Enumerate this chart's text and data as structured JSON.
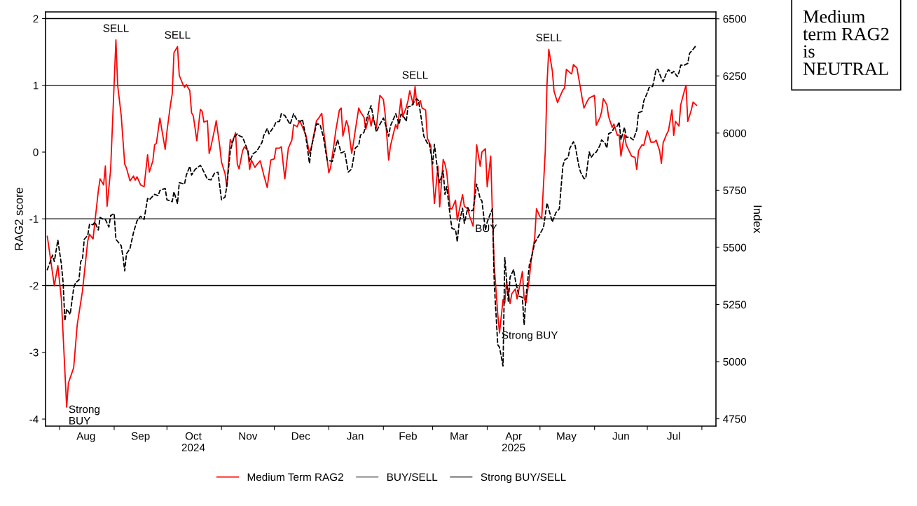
{
  "chart_data": {
    "type": "line",
    "ylabel": "RAG2 score",
    "y2label": "Index",
    "legend": "bottom",
    "xlim": [
      "2024-07-24",
      "2025-08-09"
    ],
    "ylim": [
      -4.105,
      2.1
    ],
    "yticks": [
      -4,
      -3,
      -2,
      -1,
      0,
      1,
      2
    ],
    "y2lim": [
      4718,
      6530
    ],
    "y2ticks": [
      4750,
      5000,
      5250,
      5500,
      5750,
      6000,
      6250,
      6500
    ],
    "xticks": [
      {
        "value": "2024-08-01",
        "label": null
      },
      {
        "value": "2024-09-01",
        "label": null
      },
      {
        "value": "2024-10-01",
        "label": null
      },
      {
        "value": "2024-11-01",
        "label": null
      },
      {
        "value": "2024-12-01",
        "label": null
      },
      {
        "value": "2025-01-01",
        "label": null
      },
      {
        "value": "2025-02-01",
        "label": null
      },
      {
        "value": "2025-03-01",
        "label": null
      },
      {
        "value": "2025-04-01",
        "label": null
      },
      {
        "value": "2025-05-01",
        "label": null
      },
      {
        "value": "2025-06-01",
        "label": null
      },
      {
        "value": "2025-07-01",
        "label": null
      },
      {
        "value": "2025-08-01",
        "label": null
      },
      {
        "value": "2024-08-16",
        "label": "Aug"
      },
      {
        "value": "2024-09-16",
        "label": "Sep"
      },
      {
        "value": "2024-10-16",
        "label": "Oct\n2024"
      },
      {
        "value": "2024-11-16",
        "label": "Nov"
      },
      {
        "value": "2024-12-16",
        "label": "Dec"
      },
      {
        "value": "2025-01-16",
        "label": "Jan"
      },
      {
        "value": "2025-02-15",
        "label": "Feb"
      },
      {
        "value": "2025-03-16",
        "label": "Mar"
      },
      {
        "value": "2025-04-16",
        "label": "Apr\n2025"
      },
      {
        "value": "2025-05-16",
        "label": "May"
      },
      {
        "value": "2025-06-16",
        "label": "Jun"
      },
      {
        "value": "2025-07-16",
        "label": "Jul"
      }
    ],
    "series": [
      {
        "name": "Medium Term RAG2",
        "color": "#ff0000",
        "line_style": "solid",
        "x": [
          "2024-07-25",
          "2024-07-29",
          "2024-07-31",
          "2024-08-02",
          "2024-08-05",
          "2024-08-06",
          "2024-08-09",
          "2024-08-11",
          "2024-08-14",
          "2024-08-17",
          "2024-08-18",
          "2024-08-20",
          "2024-08-23",
          "2024-08-24",
          "2024-08-26",
          "2024-08-27",
          "2024-08-28",
          "2024-08-30",
          "2024-09-02",
          "2024-09-03",
          "2024-09-05",
          "2024-09-07",
          "2024-09-08",
          "2024-09-10",
          "2024-09-12",
          "2024-09-13",
          "2024-09-14",
          "2024-09-16",
          "2024-09-18",
          "2024-09-20",
          "2024-09-21",
          "2024-09-23",
          "2024-09-24",
          "2024-09-25",
          "2024-09-27",
          "2024-09-28",
          "2024-09-30",
          "2024-10-01",
          "2024-10-03",
          "2024-10-04",
          "2024-10-05",
          "2024-10-07",
          "2024-10-08",
          "2024-10-10",
          "2024-10-11",
          "2024-10-12",
          "2024-10-14",
          "2024-10-15",
          "2024-10-16",
          "2024-10-18",
          "2024-10-20",
          "2024-10-21",
          "2024-10-22",
          "2024-10-24",
          "2024-10-25",
          "2024-10-26",
          "2024-10-28",
          "2024-10-29",
          "2024-10-31",
          "2024-11-01",
          "2024-11-03",
          "2024-11-04",
          "2024-11-06",
          "2024-11-07",
          "2024-11-09",
          "2024-11-10",
          "2024-11-11",
          "2024-11-13",
          "2024-11-14",
          "2024-11-16",
          "2024-11-17",
          "2024-11-18",
          "2024-11-20",
          "2024-11-21",
          "2024-11-23",
          "2024-11-25",
          "2024-11-27",
          "2024-11-29",
          "2024-12-01",
          "2024-12-02",
          "2024-12-04",
          "2024-12-05",
          "2024-12-07",
          "2024-12-09",
          "2024-12-11",
          "2024-12-12",
          "2024-12-14",
          "2024-12-15",
          "2024-12-16",
          "2024-12-19",
          "2024-12-21",
          "2024-12-22",
          "2024-12-25",
          "2024-12-26",
          "2024-12-28",
          "2024-12-29",
          "2025-01-01",
          "2025-01-02",
          "2025-01-04",
          "2025-01-05",
          "2025-01-07",
          "2025-01-08",
          "2025-01-09",
          "2025-01-11",
          "2025-01-12",
          "2025-01-14",
          "2025-01-15",
          "2025-01-16",
          "2025-01-18",
          "2025-01-19",
          "2025-01-21",
          "2025-01-22",
          "2025-01-24",
          "2025-01-25",
          "2025-01-26",
          "2025-01-28",
          "2025-01-30",
          "2025-02-01",
          "2025-02-02",
          "2025-02-04",
          "2025-02-05",
          "2025-02-07",
          "2025-02-08",
          "2025-02-09",
          "2025-02-11",
          "2025-02-12",
          "2025-02-14",
          "2025-02-15",
          "2025-02-16",
          "2025-02-18",
          "2025-02-19",
          "2025-02-20",
          "2025-02-22",
          "2025-02-23",
          "2025-02-25",
          "2025-02-26",
          "2025-02-28",
          "2025-03-01",
          "2025-03-02",
          "2025-03-04",
          "2025-03-05",
          "2025-03-07",
          "2025-03-08",
          "2025-03-09",
          "2025-03-11",
          "2025-03-12",
          "2025-03-14",
          "2025-03-15",
          "2025-03-17",
          "2025-03-18",
          "2025-03-19",
          "2025-03-21",
          "2025-03-22",
          "2025-03-24",
          "2025-03-25",
          "2025-03-26",
          "2025-03-28",
          "2025-03-29",
          "2025-03-31",
          "2025-04-01",
          "2025-04-03",
          "2025-04-04",
          "2025-04-05",
          "2025-04-07",
          "2025-04-08",
          "2025-04-10",
          "2025-04-11",
          "2025-04-12",
          "2025-04-14",
          "2025-04-15",
          "2025-04-17",
          "2025-04-18",
          "2025-04-21",
          "2025-04-22",
          "2025-04-23",
          "2025-04-25",
          "2025-04-26",
          "2025-04-28",
          "2025-04-29",
          "2025-05-01",
          "2025-05-02",
          "2025-05-04",
          "2025-05-05",
          "2025-05-06",
          "2025-05-08",
          "2025-05-09",
          "2025-05-11",
          "2025-05-12",
          "2025-05-14",
          "2025-05-15",
          "2025-05-16",
          "2025-05-18",
          "2025-05-19",
          "2025-05-20",
          "2025-05-22",
          "2025-05-24",
          "2025-05-25",
          "2025-05-26",
          "2025-05-28",
          "2025-05-29",
          "2025-06-01",
          "2025-06-02",
          "2025-06-04",
          "2025-06-05",
          "2025-06-06",
          "2025-06-08",
          "2025-06-09",
          "2025-06-11",
          "2025-06-12",
          "2025-06-14",
          "2025-06-15",
          "2025-06-16",
          "2025-06-18",
          "2025-06-19",
          "2025-06-21",
          "2025-06-22",
          "2025-06-24",
          "2025-06-25",
          "2025-06-26",
          "2025-06-28",
          "2025-06-29",
          "2025-07-01",
          "2025-07-02",
          "2025-07-03",
          "2025-07-05",
          "2025-07-06",
          "2025-07-08",
          "2025-07-09",
          "2025-07-10",
          "2025-07-12",
          "2025-07-13",
          "2025-07-15",
          "2025-07-16",
          "2025-07-17",
          "2025-07-19",
          "2025-07-20",
          "2025-07-22",
          "2025-07-23",
          "2025-07-24",
          "2025-07-26",
          "2025-07-27",
          "2025-07-29"
        ],
        "values": [
          -1.26,
          -2.0,
          -1.7,
          -2.2,
          -3.82,
          -3.46,
          -3.23,
          -2.59,
          -2.08,
          -1.33,
          -1.23,
          -1.3,
          -0.58,
          -0.4,
          -0.49,
          -0.21,
          -0.81,
          -0.26,
          1.68,
          1.0,
          0.55,
          -0.18,
          -0.24,
          -0.43,
          -0.36,
          -0.42,
          -0.37,
          -0.49,
          -0.52,
          -0.04,
          -0.3,
          -0.13,
          0.11,
          0.13,
          0.51,
          0.35,
          0.04,
          0.31,
          0.71,
          0.87,
          1.49,
          1.58,
          1.15,
          1.02,
          0.97,
          1.01,
          0.92,
          0.59,
          0.54,
          0.17,
          0.64,
          0.61,
          0.45,
          0.47,
          -0.02,
          0.08,
          0.33,
          0.47,
          0.09,
          -0.15,
          -0.32,
          -0.52,
          0.19,
          0.13,
          0.29,
          -0.18,
          -0.25,
          0.02,
          0.08,
          0.02,
          -0.26,
          -0.12,
          -0.23,
          -0.19,
          -0.13,
          -0.34,
          -0.53,
          -0.12,
          -0.1,
          0.06,
          0.06,
          0.08,
          -0.4,
          0.06,
          0.18,
          0.41,
          0.38,
          0.45,
          0.44,
          0.25,
          -0.02,
          0.06,
          0.47,
          0.5,
          0.58,
          0.33,
          -0.31,
          -0.23,
          0.13,
          0.33,
          0.63,
          0.66,
          0.24,
          0.47,
          0.39,
          -0.02,
          0.14,
          0.32,
          0.66,
          0.6,
          0.52,
          0.34,
          0.55,
          0.39,
          0.52,
          0.36,
          0.85,
          0.79,
          0.57,
          -0.12,
          0.09,
          0.31,
          0.41,
          0.35,
          0.8,
          0.53,
          0.67,
          0.77,
          0.92,
          0.71,
          0.98,
          0.7,
          0.77,
          0.66,
          0.63,
          0.21,
          0.09,
          -0.34,
          -0.77,
          -0.21,
          -0.82,
          -0.11,
          -0.18,
          -0.3,
          -0.85,
          -0.85,
          -0.72,
          -1.02,
          -0.76,
          -0.64,
          -0.81,
          -0.85,
          -0.96,
          -1.11,
          -0.5,
          0.11,
          -0.21,
          0.0,
          0.05,
          -0.52,
          -0.06,
          -0.97,
          -1.7,
          -2.43,
          -2.71,
          -2.21,
          -2.26,
          -1.94,
          -2.27,
          -2.12,
          -2.05,
          -2.2,
          -1.79,
          -2.19,
          -2.26,
          -1.88,
          -1.62,
          -1.29,
          -0.85,
          -0.97,
          -0.99,
          0.01,
          1.02,
          1.54,
          1.22,
          0.91,
          0.74,
          0.81,
          0.93,
          0.96,
          1.24,
          1.19,
          1.17,
          1.31,
          1.26,
          0.96,
          0.8,
          0.66,
          0.77,
          0.81,
          0.85,
          0.4,
          0.51,
          0.6,
          0.8,
          0.71,
          0.53,
          0.37,
          0.42,
          0.25,
          0.26,
          -0.06,
          0.26,
          0.11,
          0.0,
          -0.06,
          -0.08,
          -0.26,
          0.02,
          0.11,
          0.1,
          0.32,
          0.25,
          0.15,
          0.15,
          0.18,
          0.02,
          -0.17,
          0.14,
          0.27,
          0.32,
          0.63,
          0.25,
          0.46,
          0.39,
          0.71,
          0.91,
          1.0,
          0.46,
          0.63,
          0.75,
          0.7
        ]
      },
      {
        "color": "#000000",
        "line_style": "dashed",
        "axis": "y2",
        "x": [
          "2024-07-25",
          "2024-07-28",
          "2024-07-29",
          "2024-07-31",
          "2024-08-02",
          "2024-08-03",
          "2024-08-04",
          "2024-08-05",
          "2024-08-07",
          "2024-08-09",
          "2024-08-10",
          "2024-08-12",
          "2024-08-13",
          "2024-08-14",
          "2024-08-15",
          "2024-08-17",
          "2024-08-18",
          "2024-08-20",
          "2024-08-21",
          "2024-08-23",
          "2024-08-24",
          "2024-08-26",
          "2024-08-27",
          "2024-08-29",
          "2024-08-30",
          "2024-09-01",
          "2024-09-02",
          "2024-09-05",
          "2024-09-06",
          "2024-09-07",
          "2024-09-08",
          "2024-09-10",
          "2024-09-12",
          "2024-09-14",
          "2024-09-16",
          "2024-09-18",
          "2024-09-20",
          "2024-09-21",
          "2024-09-24",
          "2024-09-26",
          "2024-09-27",
          "2024-09-30",
          "2024-10-01",
          "2024-10-04",
          "2024-10-05",
          "2024-10-07",
          "2024-10-08",
          "2024-10-11",
          "2024-10-12",
          "2024-10-14",
          "2024-10-15",
          "2024-10-17",
          "2024-10-20",
          "2024-10-21",
          "2024-10-24",
          "2024-10-26",
          "2024-10-28",
          "2024-10-30",
          "2024-11-01",
          "2024-11-03",
          "2024-11-04",
          "2024-11-06",
          "2024-11-08",
          "2024-11-10",
          "2024-11-11",
          "2024-11-13",
          "2024-11-16",
          "2024-11-17",
          "2024-11-19",
          "2024-11-21",
          "2024-11-24",
          "2024-11-25",
          "2024-11-27",
          "2024-11-28",
          "2024-12-01",
          "2024-12-02",
          "2024-12-04",
          "2024-12-05",
          "2024-12-07",
          "2024-12-10",
          "2024-12-12",
          "2024-12-14",
          "2024-12-16",
          "2024-12-17",
          "2024-12-19",
          "2024-12-21",
          "2024-12-22",
          "2024-12-25",
          "2024-12-27",
          "2024-12-29",
          "2024-12-31",
          "2025-01-03",
          "2025-01-05",
          "2025-01-06",
          "2025-01-08",
          "2025-01-10",
          "2025-01-12",
          "2025-01-14",
          "2025-01-16",
          "2025-01-18",
          "2025-01-19",
          "2025-01-21",
          "2025-01-23",
          "2025-01-25",
          "2025-01-26",
          "2025-01-28",
          "2025-01-30",
          "2025-02-01",
          "2025-02-02",
          "2025-02-04",
          "2025-02-05",
          "2025-02-07",
          "2025-02-08",
          "2025-02-10",
          "2025-02-11",
          "2025-02-13",
          "2025-02-14",
          "2025-02-15",
          "2025-02-17",
          "2025-02-18",
          "2025-02-20",
          "2025-02-21",
          "2025-02-23",
          "2025-02-24",
          "2025-02-26",
          "2025-02-27",
          "2025-03-01",
          "2025-03-02",
          "2025-03-04",
          "2025-03-05",
          "2025-03-07",
          "2025-03-08",
          "2025-03-09",
          "2025-03-11",
          "2025-03-12",
          "2025-03-14",
          "2025-03-15",
          "2025-03-16",
          "2025-03-18",
          "2025-03-19",
          "2025-03-21",
          "2025-03-22",
          "2025-03-24",
          "2025-03-26",
          "2025-03-28",
          "2025-03-29",
          "2025-03-31",
          "2025-04-01",
          "2025-04-03",
          "2025-04-04",
          "2025-04-05",
          "2025-04-07",
          "2025-04-08",
          "2025-04-10",
          "2025-04-11",
          "2025-04-13",
          "2025-04-14",
          "2025-04-16",
          "2025-04-17",
          "2025-04-19",
          "2025-04-21",
          "2025-04-22",
          "2025-04-23",
          "2025-04-25",
          "2025-04-26",
          "2025-04-28",
          "2025-05-01",
          "2025-05-03",
          "2025-05-05",
          "2025-05-08",
          "2025-05-10",
          "2025-05-12",
          "2025-05-14",
          "2025-05-15",
          "2025-05-17",
          "2025-05-18",
          "2025-05-20",
          "2025-05-21",
          "2025-05-23",
          "2025-05-24",
          "2025-05-26",
          "2025-05-27",
          "2025-05-29",
          "2025-05-30",
          "2025-06-01",
          "2025-06-02",
          "2025-06-04",
          "2025-06-05",
          "2025-06-07",
          "2025-06-08",
          "2025-06-09",
          "2025-06-11",
          "2025-06-12",
          "2025-06-14",
          "2025-06-15",
          "2025-06-16",
          "2025-06-18",
          "2025-06-19",
          "2025-06-21",
          "2025-06-23",
          "2025-06-25",
          "2025-06-26",
          "2025-06-28",
          "2025-06-29",
          "2025-07-01",
          "2025-07-02",
          "2025-07-04",
          "2025-07-05",
          "2025-07-06",
          "2025-07-07",
          "2025-07-09",
          "2025-07-10",
          "2025-07-12",
          "2025-07-13",
          "2025-07-15",
          "2025-07-16",
          "2025-07-18",
          "2025-07-19",
          "2025-07-20",
          "2025-07-22",
          "2025-07-24",
          "2025-07-25",
          "2025-07-27",
          "2025-07-29"
        ],
        "values": [
          5402,
          5466,
          5438,
          5532,
          5426,
          5345,
          5178,
          5230,
          5207,
          5322,
          5345,
          5357,
          5438,
          5449,
          5535,
          5553,
          5601,
          5599,
          5611,
          5576,
          5631,
          5622,
          5622,
          5589,
          5639,
          5648,
          5535,
          5507,
          5460,
          5397,
          5472,
          5495,
          5565,
          5616,
          5636,
          5622,
          5714,
          5708,
          5732,
          5726,
          5749,
          5758,
          5708,
          5700,
          5743,
          5691,
          5783,
          5777,
          5816,
          5855,
          5816,
          5841,
          5859,
          5846,
          5798,
          5795,
          5824,
          5829,
          5708,
          5720,
          5766,
          5922,
          5980,
          5997,
          5989,
          5982,
          5922,
          5876,
          5910,
          5920,
          5959,
          5989,
          6020,
          5997,
          6031,
          6049,
          6051,
          6085,
          6077,
          6038,
          6085,
          6055,
          6051,
          6060,
          5980,
          5867,
          5934,
          6040,
          6038,
          5980,
          5882,
          5876,
          5945,
          5970,
          5913,
          5920,
          5829,
          5843,
          5934,
          5947,
          5991,
          6003,
          6077,
          6120,
          6081,
          6005,
          6038,
          6066,
          6043,
          5986,
          6031,
          6066,
          6085,
          6038,
          6083,
          6066,
          6051,
          6116,
          6118,
          6132,
          6150,
          6141,
          6040,
          5986,
          5956,
          5959,
          5865,
          5951,
          5824,
          5783,
          5835,
          5732,
          5766,
          5634,
          5582,
          5578,
          5524,
          5605,
          5671,
          5605,
          5674,
          5659,
          5662,
          5777,
          5714,
          5703,
          5576,
          5611,
          5651,
          5669,
          5345,
          5074,
          5063,
          4981,
          5455,
          5264,
          5369,
          5403,
          5357,
          5287,
          5281,
          5160,
          5281,
          5426,
          5449,
          5520,
          5559,
          5587,
          5694,
          5611,
          5651,
          5669,
          5856,
          5882,
          5893,
          5934,
          5962,
          5945,
          5859,
          5830,
          5801,
          5801,
          5917,
          5893,
          5913,
          5917,
          5945,
          5970,
          5956,
          5934,
          5997,
          6005,
          6023,
          6031,
          6049,
          5970,
          6025,
          5982,
          5982,
          5970,
          6014,
          6089,
          6095,
          6141,
          6176,
          6199,
          6204,
          6239,
          6279,
          6279,
          6239,
          6225,
          6265,
          6277,
          6262,
          6270,
          6247,
          6265,
          6297,
          6297,
          6305,
          6349,
          6366,
          6386
        ]
      }
    ],
    "ref_lines": [
      {
        "axis": "y",
        "value": 1,
        "label": "BUY/SELL",
        "color": "#333333"
      },
      {
        "axis": "y",
        "value": -1,
        "color": "#333333"
      },
      {
        "axis": "y",
        "value": 2,
        "label": "Strong BUY/SELL",
        "color": "#000000"
      },
      {
        "axis": "y",
        "value": -2,
        "color": "#000000"
      }
    ],
    "annotations": [
      {
        "text": "SELL",
        "x": "2024-09-02",
        "y": 1.68
      },
      {
        "text": "SELL",
        "x": "2024-10-07",
        "y": 1.58
      },
      {
        "text": "SELL",
        "x": "2025-02-19",
        "y": 0.98
      },
      {
        "text": "SELL",
        "x": "2025-05-06",
        "y": 1.54
      },
      {
        "text": "BUY",
        "x": "2025-03-24",
        "y": -1.11
      },
      {
        "text": "Strong\nBUY",
        "x": "2024-08-05",
        "y": -3.82
      },
      {
        "text": "Strong BUY",
        "x": "2025-04-08",
        "y": -2.71
      },
      "Medium\nterm RAG2\nis\nNEUTRAL"
    ]
  }
}
